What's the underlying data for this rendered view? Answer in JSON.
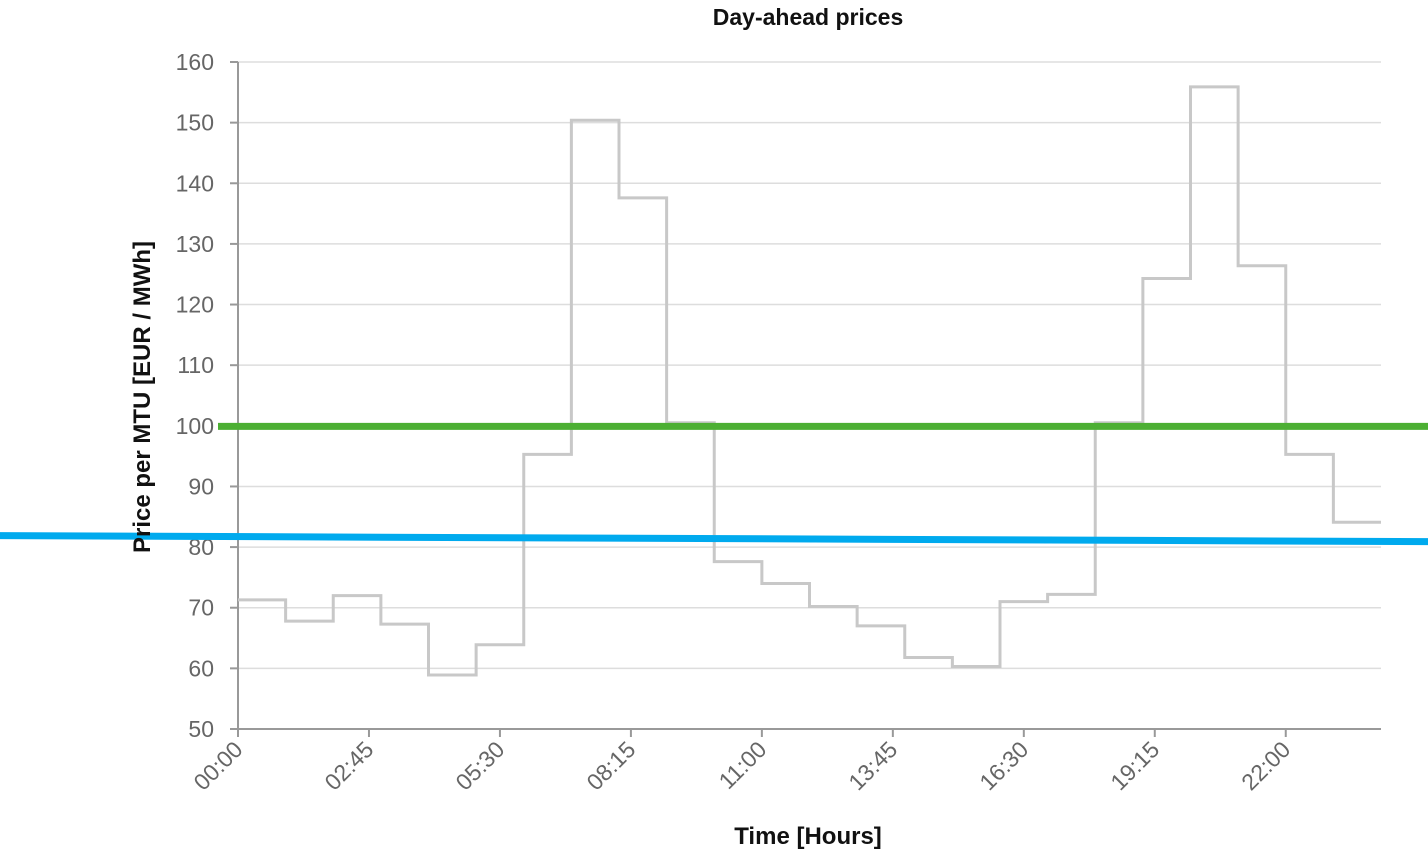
{
  "chart_data": {
    "type": "line",
    "step": true,
    "title": "Day-ahead prices",
    "xlabel": "Time [Hours]",
    "ylabel": "Price per MTU [EUR / MWh]",
    "ylim": [
      50,
      160
    ],
    "xlim_hours": [
      0,
      24
    ],
    "yticks": [
      50,
      60,
      70,
      80,
      90,
      100,
      110,
      120,
      130,
      140,
      150,
      160
    ],
    "xtick_labels": [
      "00:00",
      "02:45",
      "05:30",
      "08:15",
      "11:00",
      "13:45",
      "16:30",
      "19:15",
      "22:00"
    ],
    "x": [
      "00:00",
      "01:00",
      "02:00",
      "03:00",
      "04:00",
      "05:00",
      "06:00",
      "07:00",
      "08:00",
      "09:00",
      "10:00",
      "11:00",
      "12:00",
      "13:00",
      "14:00",
      "15:00",
      "16:00",
      "17:00",
      "18:00",
      "19:00",
      "20:00",
      "21:00",
      "22:00",
      "23:00"
    ],
    "series": [
      {
        "color": "#c8c8c8",
        "values": [
          71.3,
          67.8,
          72.0,
          67.3,
          58.9,
          63.9,
          95.3,
          150.4,
          137.6,
          100.5,
          77.6,
          74.0,
          70.2,
          67.0,
          61.8,
          60.3,
          71.0,
          72.2,
          100.5,
          124.3,
          155.9,
          126.4,
          95.3,
          84.1
        ]
      }
    ],
    "grid": true,
    "reference_lines": [
      {
        "color": "#4caf33",
        "y_left": 99.9,
        "y_right": 99.9
      },
      {
        "color": "#00aaee",
        "y_left": 81.9,
        "y_right": 80.9
      }
    ]
  }
}
